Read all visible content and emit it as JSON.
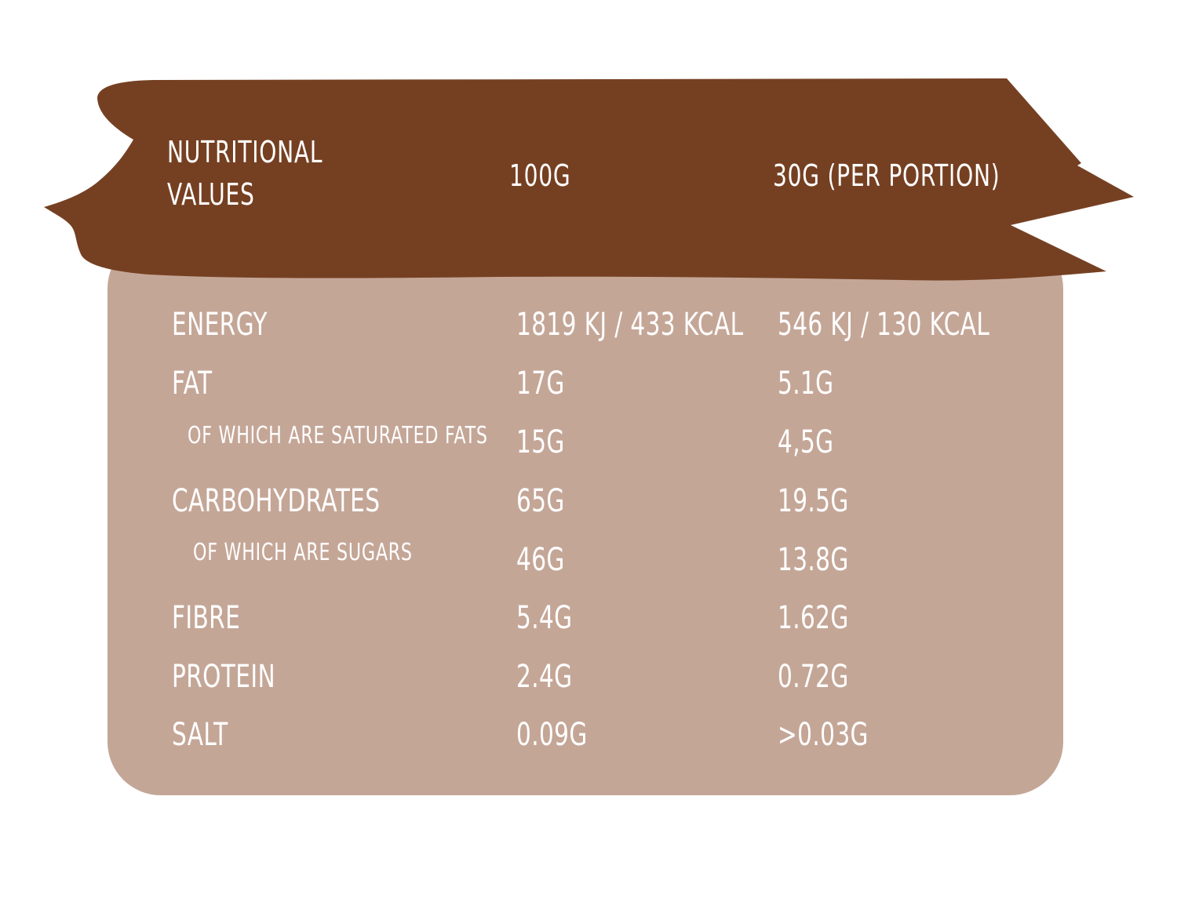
{
  "header": {
    "col_label": [
      "NUTRITIONAL",
      "VALUES"
    ],
    "col_100g": "100G",
    "col_portion": "30G (PER PORTION)"
  },
  "colors": {
    "banner": "#754022",
    "panel": "#c4a697",
    "text": "#ffffff"
  },
  "rows": [
    {
      "label": "ENERGY",
      "per100": "1819 KJ / 433 KCAL",
      "portion": "546 KJ / 130 KCAL"
    },
    {
      "label": "FAT",
      "per100": "17G",
      "portion": "5.1G"
    },
    {
      "label": "OF WHICH ARE SATURATED FATS",
      "per100": "15G",
      "portion": "4,5G"
    },
    {
      "label": "CARBOHYDRATES",
      "per100": "65G",
      "portion": "19.5G"
    },
    {
      "label": "OF WHICH ARE SUGARS",
      "per100": "46G",
      "portion": "13.8G"
    },
    {
      "label": "FIBRE",
      "per100": "5.4G",
      "portion": "1.62G"
    },
    {
      "label": "PROTEIN",
      "per100": "2.4G",
      "portion": "0.72G"
    },
    {
      "label": "SALT",
      "per100": "0.09G",
      "portion": ">0.03G"
    }
  ]
}
